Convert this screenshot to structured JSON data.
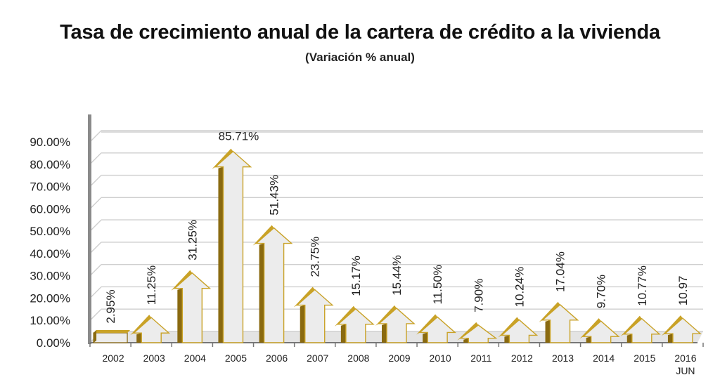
{
  "chart_data": {
    "type": "bar",
    "title": "Tasa de crecimiento anual de la cartera de crédito a la vivienda",
    "subtitle": "(Variación % anual)",
    "xlabel": "",
    "ylabel": "",
    "ylim": [
      0,
      90
    ],
    "yticks": [
      "0.00%",
      "10.00%",
      "20.00%",
      "30.00%",
      "40.00%",
      "50.00%",
      "60.00%",
      "70.00%",
      "80.00%",
      "90.00%"
    ],
    "grid": true,
    "categories": [
      "2002",
      "2003",
      "2004",
      "2005",
      "2006",
      "2007",
      "2008",
      "2009",
      "2010",
      "2011",
      "2012",
      "2013",
      "2014",
      "2015",
      "2016"
    ],
    "category_sublabels": [
      "",
      "",
      "",
      "",
      "",
      "",
      "",
      "",
      "",
      "",
      "",
      "",
      "",
      "",
      "JUN"
    ],
    "values": [
      2.95,
      11.25,
      31.25,
      85.71,
      51.43,
      23.75,
      15.17,
      15.44,
      11.5,
      7.9,
      10.24,
      17.04,
      9.7,
      10.77,
      10.97
    ],
    "data_labels": [
      "2.95%",
      "11.25%",
      "31.25%",
      "85.71%",
      "51.43%",
      "23.75%",
      "15.17%",
      "15.44%",
      "11.50%",
      "7.90%",
      "10.24%",
      "17.04%",
      "9.70%",
      "10.77%",
      "10.97"
    ],
    "colors": {
      "arrow_dark": "#8a6a10",
      "arrow_gold": "#c9a227",
      "arrow_face": "#ececec",
      "grid": "#cfcfcf",
      "wall": "#8a8a8a",
      "floor": "#e4e4e4"
    }
  }
}
